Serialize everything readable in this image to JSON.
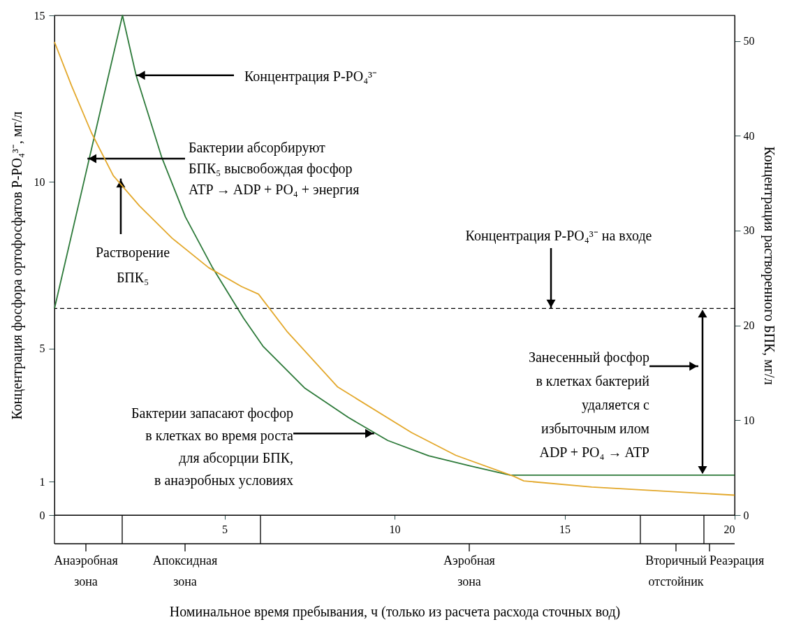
{
  "chart_data": {
    "type": "line",
    "xlabel": "Номинальное время пребывания, ч (только из расчета расхода сточных вод)",
    "ylabel": "Концентрация фосфора ортофосфатов P-PO₄³⁻, мг/л",
    "y2label": "Концентрация растворенного БПК, мг/л",
    "xlim": [
      0,
      20
    ],
    "xticks": [
      5,
      10,
      15,
      20
    ],
    "ylim": [
      0,
      15
    ],
    "yticks": [
      0,
      1,
      5,
      10,
      15
    ],
    "y2lim": [
      0,
      52.7
    ],
    "y2ticks": [
      0,
      10,
      20,
      30,
      40,
      50
    ],
    "series": [
      {
        "color": "#2d7a3a",
        "x": [
          0,
          2,
          2.4,
          3.15,
          3.85,
          4.63,
          5.56,
          6.13,
          7.35,
          8.64,
          9.8,
          11.0,
          12.24,
          13.4,
          20
        ],
        "values": [
          6.2,
          15,
          13.2,
          10.75,
          8.95,
          7.46,
          5.91,
          5.07,
          3.82,
          2.93,
          2.24,
          1.78,
          1.47,
          1.2,
          1.2
        ]
      },
      {
        "color": "#e3a82b",
        "axis": "y2",
        "x": [
          0,
          0.5,
          1.09,
          1.73,
          2.5,
          3.46,
          4.53,
          5.5,
          6.0,
          6.83,
          8.33,
          10.5,
          11.8,
          13.5,
          13.8,
          15.8,
          20
        ],
        "values": [
          49.9,
          45.3,
          40.3,
          35.8,
          32.6,
          29.2,
          26.1,
          24.1,
          23.3,
          19.4,
          13.5,
          8.7,
          6.3,
          4.1,
          3.6,
          2.95,
          2.1
        ]
      }
    ],
    "ref_lines": [
      {
        "axis": "y",
        "value": 6.2,
        "line_style": "dashed",
        "color": "#000000"
      }
    ],
    "annotations": [
      {
        "text": "Концентрация P-PO₄³⁻",
        "x": 2.4,
        "y": 13.2
      },
      {
        "text": "Бактерии абсорбируют\nБПК₅ высвобождая фосфор\nATP → ADP + PO₄ + энергия",
        "x": 0.97,
        "y": 10.7
      },
      {
        "text": "Растворение\nБПК₅",
        "x": 1.95,
        "y": 10.1
      },
      {
        "text": "Концентрация P-PO₄³⁻ на входе",
        "x": 14.6,
        "y": 6.2
      },
      {
        "text": "Бактерии запасают фосфор\nв клетках во время роста\nдля абсорции БПК,\nв анаэробных условиях",
        "x": 9.4,
        "y": 2.45
      },
      "Занесенный фосфор\nв клетках бактерий\nудаляется с\nизбыточным илом\nADP + PO₄ → ATP",
      "Анаэробная зона",
      "Апоксидная зона",
      "Аэробная зона",
      "Вторичный отстойник",
      "Реаэрация"
    ],
    "grid": false,
    "marker": "none",
    "line_style": "solid"
  }
}
